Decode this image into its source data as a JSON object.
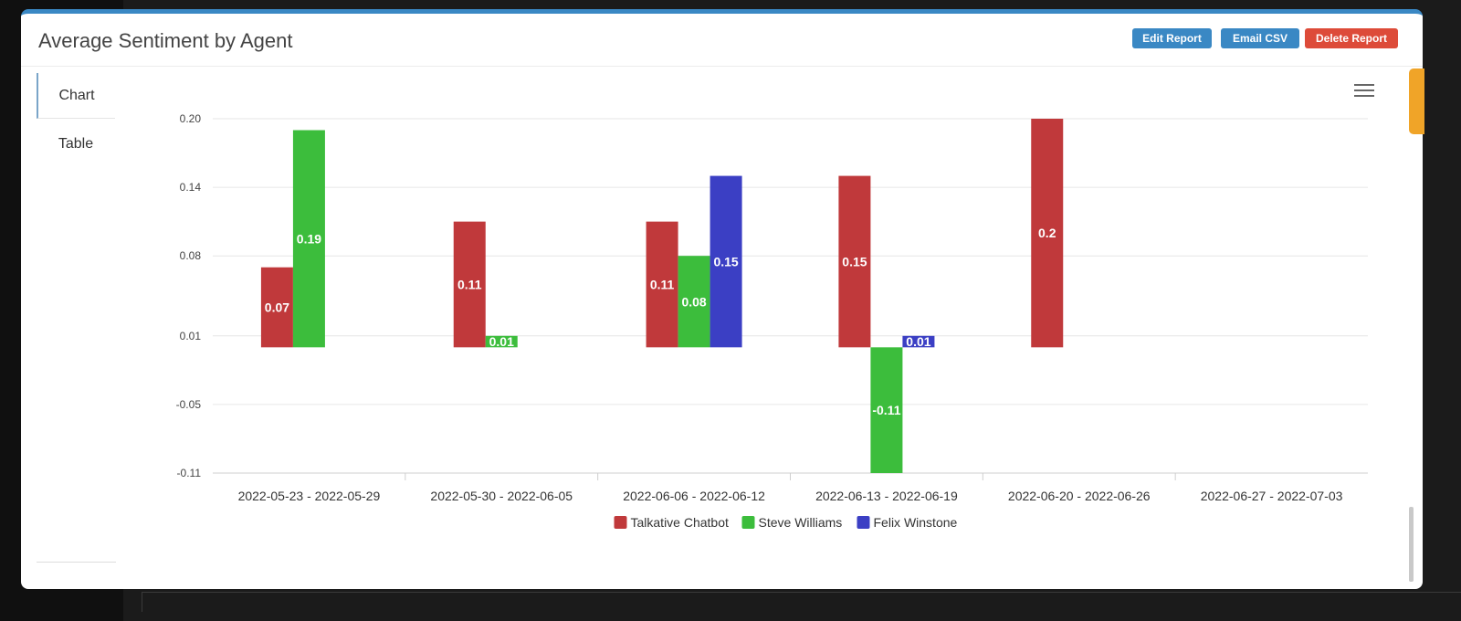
{
  "modal": {
    "title": "Average Sentiment by Agent",
    "buttons": {
      "edit": "Edit Report",
      "email": "Email CSV",
      "delete": "Delete Report"
    },
    "tabs": [
      "Chart",
      "Table"
    ]
  },
  "colors": {
    "accent": "#3a88c4",
    "danger": "#dd4b39",
    "orange": "#f0a428"
  },
  "chart_data": {
    "type": "bar",
    "categories": [
      "2022-05-23 - 2022-05-29",
      "2022-05-30 - 2022-06-05",
      "2022-06-06 - 2022-06-12",
      "2022-06-13 - 2022-06-19",
      "2022-06-20 - 2022-06-26",
      "2022-06-27 - 2022-07-03"
    ],
    "series": [
      {
        "name": "Talkative Chatbot",
        "color": "#c0393b",
        "values": [
          0.07,
          0.11,
          0.11,
          0.15,
          0.2,
          null
        ]
      },
      {
        "name": "Steve Williams",
        "color": "#3cbd3c",
        "values": [
          0.19,
          0.01,
          0.08,
          -0.11,
          null,
          null
        ]
      },
      {
        "name": "Felix Winstone",
        "color": "#3b3fc4",
        "values": [
          null,
          null,
          0.15,
          0.01,
          null,
          null
        ]
      }
    ],
    "yticks": [
      "0.20",
      "0.14",
      "0.08",
      "0.01",
      "-0.05",
      "-0.11"
    ],
    "ylim": [
      -0.11,
      0.2
    ],
    "legend": "bottom-center",
    "grid": true
  }
}
